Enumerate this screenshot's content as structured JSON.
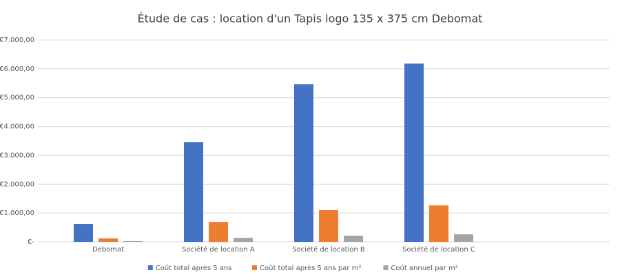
{
  "chart_data": {
    "type": "bar",
    "title": "Étude de cas : location d'un Tapis logo 135 x 375 cm Debomat",
    "categories": [
      "Debomat",
      "Société de location A",
      "Société de location B",
      "Société de location C",
      null
    ],
    "series": [
      {
        "name": "Coût total après 5 ans",
        "color": "#4472c4",
        "values": [
          620,
          3460,
          5465,
          6180,
          null
        ]
      },
      {
        "name": "Coût total après 5 ans par m²",
        "color": "#ed7d31",
        "values": [
          120,
          690,
          1100,
          1265,
          null
        ]
      },
      {
        "name": "Coût annuel par m²",
        "color": "#a5a5a5",
        "values": [
          25,
          140,
          215,
          260,
          null
        ]
      }
    ],
    "ylim": [
      0,
      7000
    ],
    "yticks": [
      {
        "value": 0,
        "label": "€-"
      },
      {
        "value": 1000,
        "label": "€1.000,00"
      },
      {
        "value": 2000,
        "label": "€2.000,00"
      },
      {
        "value": 3000,
        "label": "€3.000,00"
      },
      {
        "value": 4000,
        "label": "€4.000,00"
      },
      {
        "value": 5000,
        "label": "€5.000,00"
      },
      {
        "value": 6000,
        "label": "€6.000,00"
      },
      {
        "value": 7000,
        "label": "€7.000,00"
      }
    ],
    "grid": true,
    "legend": "bottom"
  }
}
